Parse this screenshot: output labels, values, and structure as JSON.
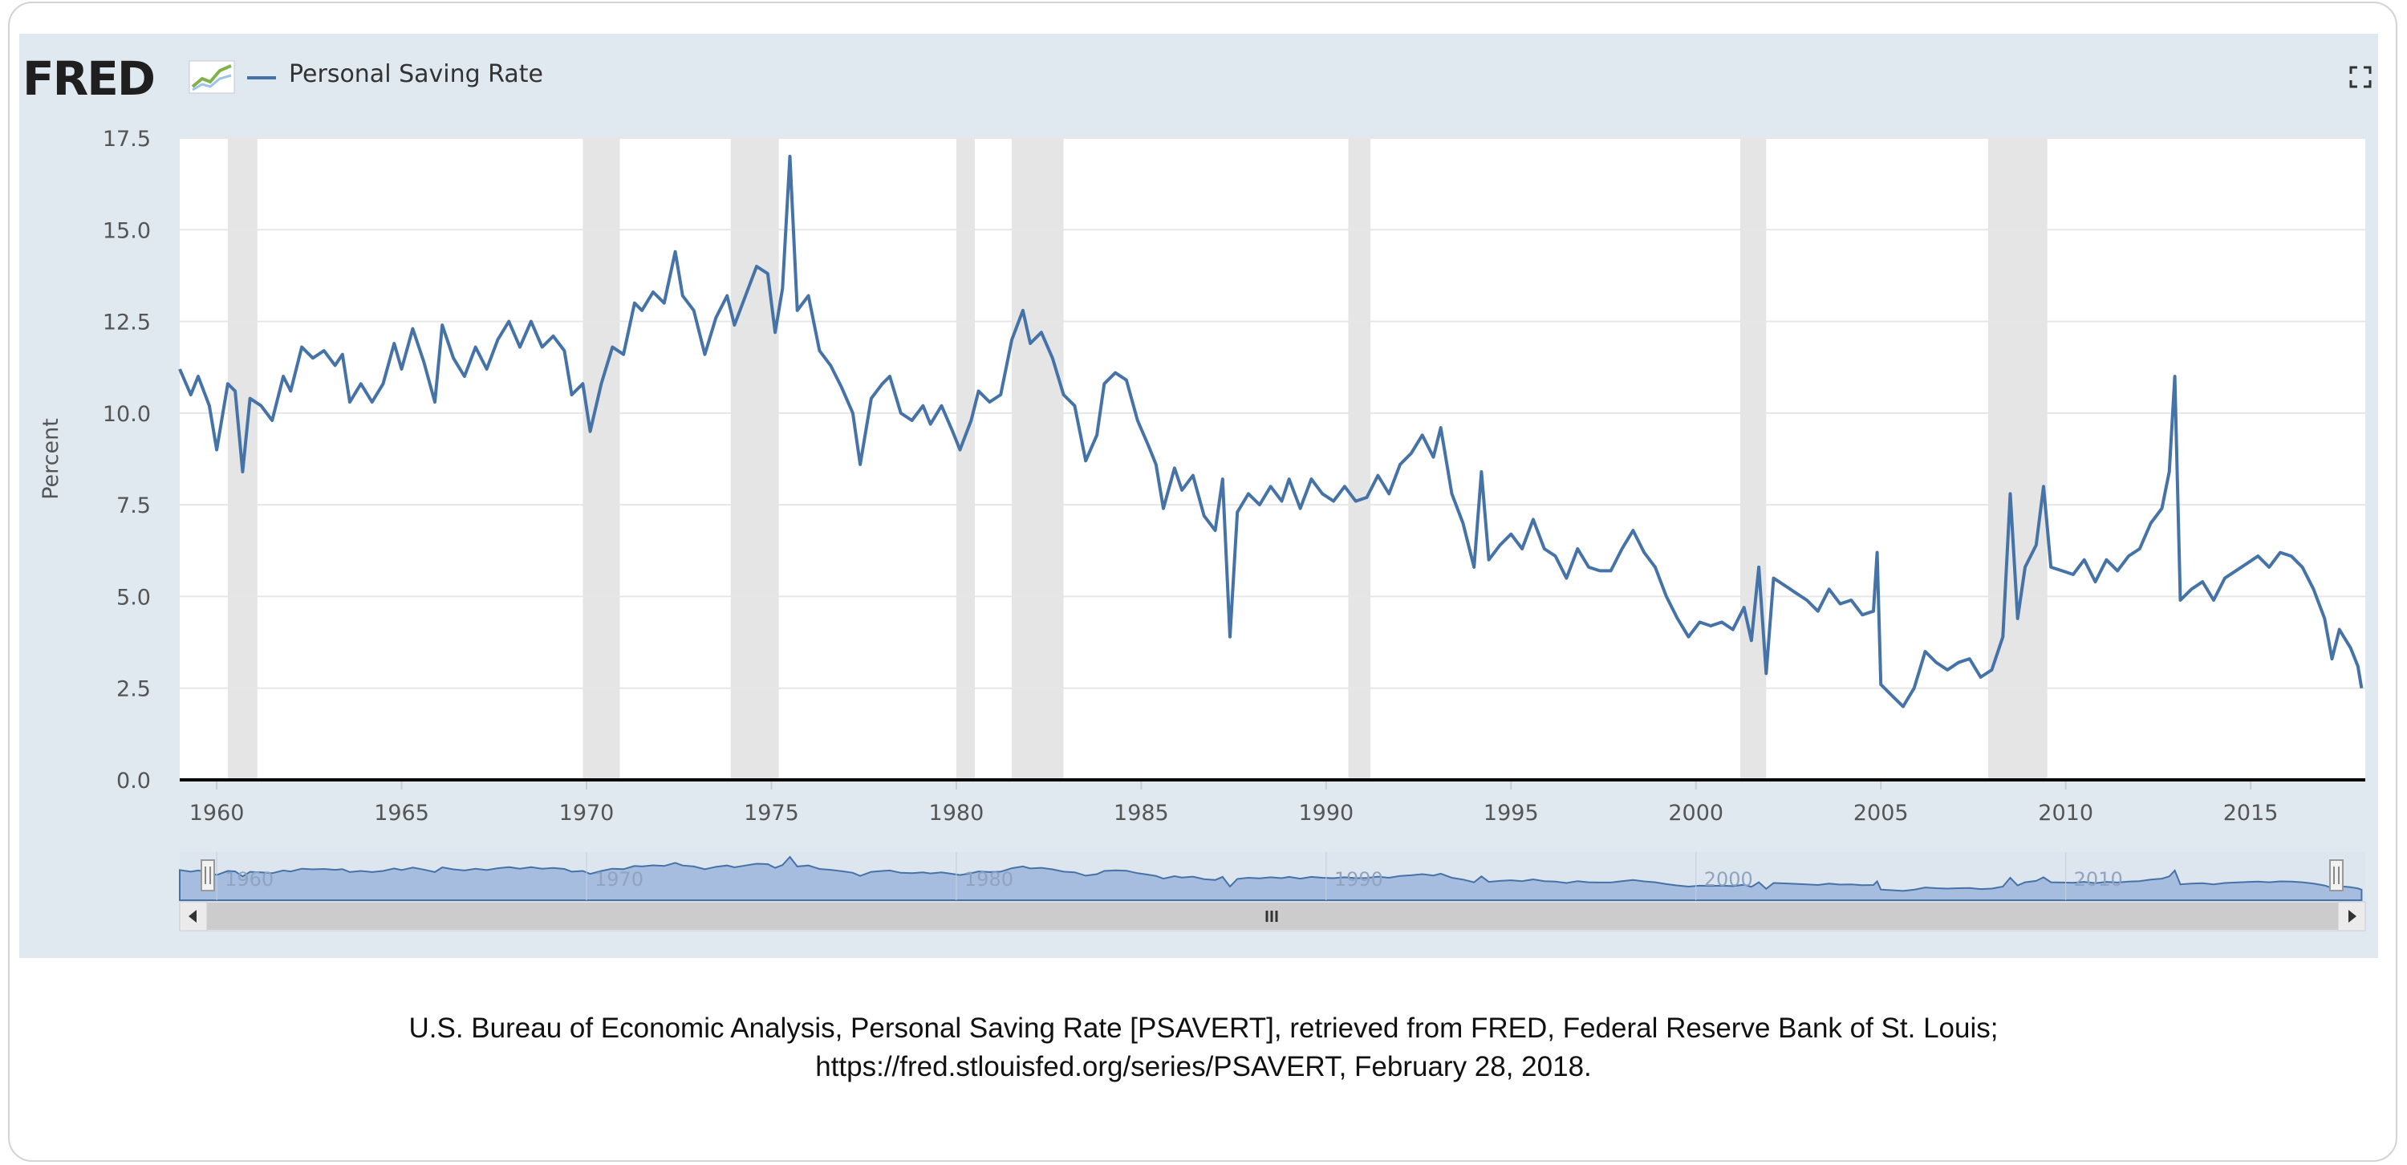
{
  "header": {
    "logo_text": "FRED",
    "logo_icon": "fred-chart-icon",
    "legend_label": "Personal Saving Rate",
    "fullscreen_icon": "fullscreen-icon"
  },
  "citation": {
    "line1": "U.S. Bureau of Economic Analysis, Personal Saving Rate [PSAVERT], retrieved from FRED, Federal Reserve Bank of St. Louis;",
    "line2": "https://fred.stlouisfed.org/series/PSAVERT, February 28, 2018."
  },
  "colors": {
    "series": "#4572a7",
    "recession": "#e5e5e5",
    "panel": "#e1e9f0",
    "navigator_fill": "#a6bde0"
  },
  "chart_data": {
    "type": "line",
    "title": "",
    "xlabel": "",
    "ylabel": "Percent",
    "xlim": [
      1959.0,
      2018.1
    ],
    "ylim": [
      0,
      17.5
    ],
    "y_ticks": [
      "0.0",
      "2.5",
      "5.0",
      "7.5",
      "10.0",
      "12.5",
      "15.0",
      "17.5"
    ],
    "x_ticks": [
      "1960",
      "1965",
      "1970",
      "1975",
      "1980",
      "1985",
      "1990",
      "1995",
      "2000",
      "2005",
      "2010",
      "2015"
    ],
    "navigator_ticks": [
      "1960",
      "1970",
      "1980",
      "1990",
      "2000",
      "2010"
    ],
    "grid": true,
    "legend": "top-left",
    "recessions": [
      [
        1960.3,
        1961.1
      ],
      [
        1969.9,
        1970.9
      ],
      [
        1973.9,
        1975.2
      ],
      [
        1980.0,
        1980.5
      ],
      [
        1981.5,
        1982.9
      ],
      [
        1990.6,
        1991.2
      ],
      [
        2001.2,
        2001.9
      ],
      [
        2007.9,
        2009.5
      ]
    ],
    "series": [
      {
        "name": "Personal Saving Rate",
        "points": [
          [
            1959.0,
            11.2
          ],
          [
            1959.3,
            10.5
          ],
          [
            1959.5,
            11.0
          ],
          [
            1959.8,
            10.2
          ],
          [
            1960.0,
            9.0
          ],
          [
            1960.3,
            10.8
          ],
          [
            1960.5,
            10.6
          ],
          [
            1960.7,
            8.4
          ],
          [
            1960.9,
            10.4
          ],
          [
            1961.2,
            10.2
          ],
          [
            1961.5,
            9.8
          ],
          [
            1961.8,
            11.0
          ],
          [
            1962.0,
            10.6
          ],
          [
            1962.3,
            11.8
          ],
          [
            1962.6,
            11.5
          ],
          [
            1962.9,
            11.7
          ],
          [
            1963.2,
            11.3
          ],
          [
            1963.4,
            11.6
          ],
          [
            1963.6,
            10.3
          ],
          [
            1963.9,
            10.8
          ],
          [
            1964.2,
            10.3
          ],
          [
            1964.5,
            10.8
          ],
          [
            1964.8,
            11.9
          ],
          [
            1965.0,
            11.2
          ],
          [
            1965.3,
            12.3
          ],
          [
            1965.6,
            11.4
          ],
          [
            1965.9,
            10.3
          ],
          [
            1966.1,
            12.4
          ],
          [
            1966.4,
            11.5
          ],
          [
            1966.7,
            11.0
          ],
          [
            1967.0,
            11.8
          ],
          [
            1967.3,
            11.2
          ],
          [
            1967.6,
            12.0
          ],
          [
            1967.9,
            12.5
          ],
          [
            1968.2,
            11.8
          ],
          [
            1968.5,
            12.5
          ],
          [
            1968.8,
            11.8
          ],
          [
            1969.1,
            12.1
          ],
          [
            1969.4,
            11.7
          ],
          [
            1969.6,
            10.5
          ],
          [
            1969.9,
            10.8
          ],
          [
            1970.1,
            9.5
          ],
          [
            1970.4,
            10.8
          ],
          [
            1970.7,
            11.8
          ],
          [
            1971.0,
            11.6
          ],
          [
            1971.3,
            13.0
          ],
          [
            1971.5,
            12.8
          ],
          [
            1971.8,
            13.3
          ],
          [
            1972.1,
            13.0
          ],
          [
            1972.4,
            14.4
          ],
          [
            1972.6,
            13.2
          ],
          [
            1972.9,
            12.8
          ],
          [
            1973.2,
            11.6
          ],
          [
            1973.5,
            12.6
          ],
          [
            1973.8,
            13.2
          ],
          [
            1974.0,
            12.4
          ],
          [
            1974.3,
            13.2
          ],
          [
            1974.6,
            14.0
          ],
          [
            1974.9,
            13.8
          ],
          [
            1975.1,
            12.2
          ],
          [
            1975.3,
            13.4
          ],
          [
            1975.5,
            17.0
          ],
          [
            1975.7,
            12.8
          ],
          [
            1976.0,
            13.2
          ],
          [
            1976.3,
            11.7
          ],
          [
            1976.6,
            11.3
          ],
          [
            1976.9,
            10.7
          ],
          [
            1977.2,
            10.0
          ],
          [
            1977.4,
            8.6
          ],
          [
            1977.7,
            10.4
          ],
          [
            1978.0,
            10.8
          ],
          [
            1978.2,
            11.0
          ],
          [
            1978.5,
            10.0
          ],
          [
            1978.8,
            9.8
          ],
          [
            1979.1,
            10.2
          ],
          [
            1979.3,
            9.7
          ],
          [
            1979.6,
            10.2
          ],
          [
            1979.9,
            9.5
          ],
          [
            1980.1,
            9.0
          ],
          [
            1980.4,
            9.8
          ],
          [
            1980.6,
            10.6
          ],
          [
            1980.9,
            10.3
          ],
          [
            1981.2,
            10.5
          ],
          [
            1981.5,
            12.0
          ],
          [
            1981.8,
            12.8
          ],
          [
            1982.0,
            11.9
          ],
          [
            1982.3,
            12.2
          ],
          [
            1982.6,
            11.5
          ],
          [
            1982.9,
            10.5
          ],
          [
            1983.2,
            10.2
          ],
          [
            1983.5,
            8.7
          ],
          [
            1983.8,
            9.4
          ],
          [
            1984.0,
            10.8
          ],
          [
            1984.3,
            11.1
          ],
          [
            1984.6,
            10.9
          ],
          [
            1984.9,
            9.8
          ],
          [
            1985.2,
            9.1
          ],
          [
            1985.4,
            8.6
          ],
          [
            1985.6,
            7.4
          ],
          [
            1985.9,
            8.5
          ],
          [
            1986.1,
            7.9
          ],
          [
            1986.4,
            8.3
          ],
          [
            1986.7,
            7.2
          ],
          [
            1987.0,
            6.8
          ],
          [
            1987.2,
            8.2
          ],
          [
            1987.4,
            3.9
          ],
          [
            1987.6,
            7.3
          ],
          [
            1987.9,
            7.8
          ],
          [
            1988.2,
            7.5
          ],
          [
            1988.5,
            8.0
          ],
          [
            1988.8,
            7.6
          ],
          [
            1989.0,
            8.2
          ],
          [
            1989.3,
            7.4
          ],
          [
            1989.6,
            8.2
          ],
          [
            1989.9,
            7.8
          ],
          [
            1990.2,
            7.6
          ],
          [
            1990.5,
            8.0
          ],
          [
            1990.8,
            7.6
          ],
          [
            1991.1,
            7.7
          ],
          [
            1991.4,
            8.3
          ],
          [
            1991.7,
            7.8
          ],
          [
            1992.0,
            8.6
          ],
          [
            1992.3,
            8.9
          ],
          [
            1992.6,
            9.4
          ],
          [
            1992.9,
            8.8
          ],
          [
            1993.1,
            9.6
          ],
          [
            1993.4,
            7.8
          ],
          [
            1993.7,
            7.0
          ],
          [
            1994.0,
            5.8
          ],
          [
            1994.2,
            8.4
          ],
          [
            1994.4,
            6.0
          ],
          [
            1994.7,
            6.4
          ],
          [
            1995.0,
            6.7
          ],
          [
            1995.3,
            6.3
          ],
          [
            1995.6,
            7.1
          ],
          [
            1995.9,
            6.3
          ],
          [
            1996.2,
            6.1
          ],
          [
            1996.5,
            5.5
          ],
          [
            1996.8,
            6.3
          ],
          [
            1997.1,
            5.8
          ],
          [
            1997.4,
            5.7
          ],
          [
            1997.7,
            5.7
          ],
          [
            1998.0,
            6.3
          ],
          [
            1998.3,
            6.8
          ],
          [
            1998.6,
            6.2
          ],
          [
            1998.9,
            5.8
          ],
          [
            1999.2,
            5.0
          ],
          [
            1999.5,
            4.4
          ],
          [
            1999.8,
            3.9
          ],
          [
            2000.1,
            4.3
          ],
          [
            2000.4,
            4.2
          ],
          [
            2000.7,
            4.3
          ],
          [
            2001.0,
            4.1
          ],
          [
            2001.3,
            4.7
          ],
          [
            2001.5,
            3.8
          ],
          [
            2001.7,
            5.8
          ],
          [
            2001.9,
            2.9
          ],
          [
            2002.1,
            5.5
          ],
          [
            2002.4,
            5.3
          ],
          [
            2002.7,
            5.1
          ],
          [
            2003.0,
            4.9
          ],
          [
            2003.3,
            4.6
          ],
          [
            2003.6,
            5.2
          ],
          [
            2003.9,
            4.8
          ],
          [
            2004.2,
            4.9
          ],
          [
            2004.5,
            4.5
          ],
          [
            2004.8,
            4.6
          ],
          [
            2004.9,
            6.2
          ],
          [
            2005.0,
            2.6
          ],
          [
            2005.3,
            2.3
          ],
          [
            2005.6,
            2.0
          ],
          [
            2005.9,
            2.5
          ],
          [
            2006.2,
            3.5
          ],
          [
            2006.5,
            3.2
          ],
          [
            2006.8,
            3.0
          ],
          [
            2007.1,
            3.2
          ],
          [
            2007.4,
            3.3
          ],
          [
            2007.7,
            2.8
          ],
          [
            2008.0,
            3.0
          ],
          [
            2008.3,
            3.9
          ],
          [
            2008.5,
            7.8
          ],
          [
            2008.7,
            4.4
          ],
          [
            2008.9,
            5.8
          ],
          [
            2009.2,
            6.4
          ],
          [
            2009.4,
            8.0
          ],
          [
            2009.6,
            5.8
          ],
          [
            2009.9,
            5.7
          ],
          [
            2010.2,
            5.6
          ],
          [
            2010.5,
            6.0
          ],
          [
            2010.8,
            5.4
          ],
          [
            2011.1,
            6.0
          ],
          [
            2011.4,
            5.7
          ],
          [
            2011.7,
            6.1
          ],
          [
            2012.0,
            6.3
          ],
          [
            2012.3,
            7.0
          ],
          [
            2012.6,
            7.4
          ],
          [
            2012.8,
            8.4
          ],
          [
            2012.95,
            11.0
          ],
          [
            2013.1,
            4.9
          ],
          [
            2013.4,
            5.2
          ],
          [
            2013.7,
            5.4
          ],
          [
            2014.0,
            4.9
          ],
          [
            2014.3,
            5.5
          ],
          [
            2014.6,
            5.7
          ],
          [
            2014.9,
            5.9
          ],
          [
            2015.2,
            6.1
          ],
          [
            2015.5,
            5.8
          ],
          [
            2015.8,
            6.2
          ],
          [
            2016.1,
            6.1
          ],
          [
            2016.4,
            5.8
          ],
          [
            2016.7,
            5.2
          ],
          [
            2017.0,
            4.4
          ],
          [
            2017.2,
            3.3
          ],
          [
            2017.4,
            4.1
          ],
          [
            2017.7,
            3.6
          ],
          [
            2017.9,
            3.1
          ],
          [
            2018.0,
            2.5
          ]
        ]
      }
    ]
  }
}
